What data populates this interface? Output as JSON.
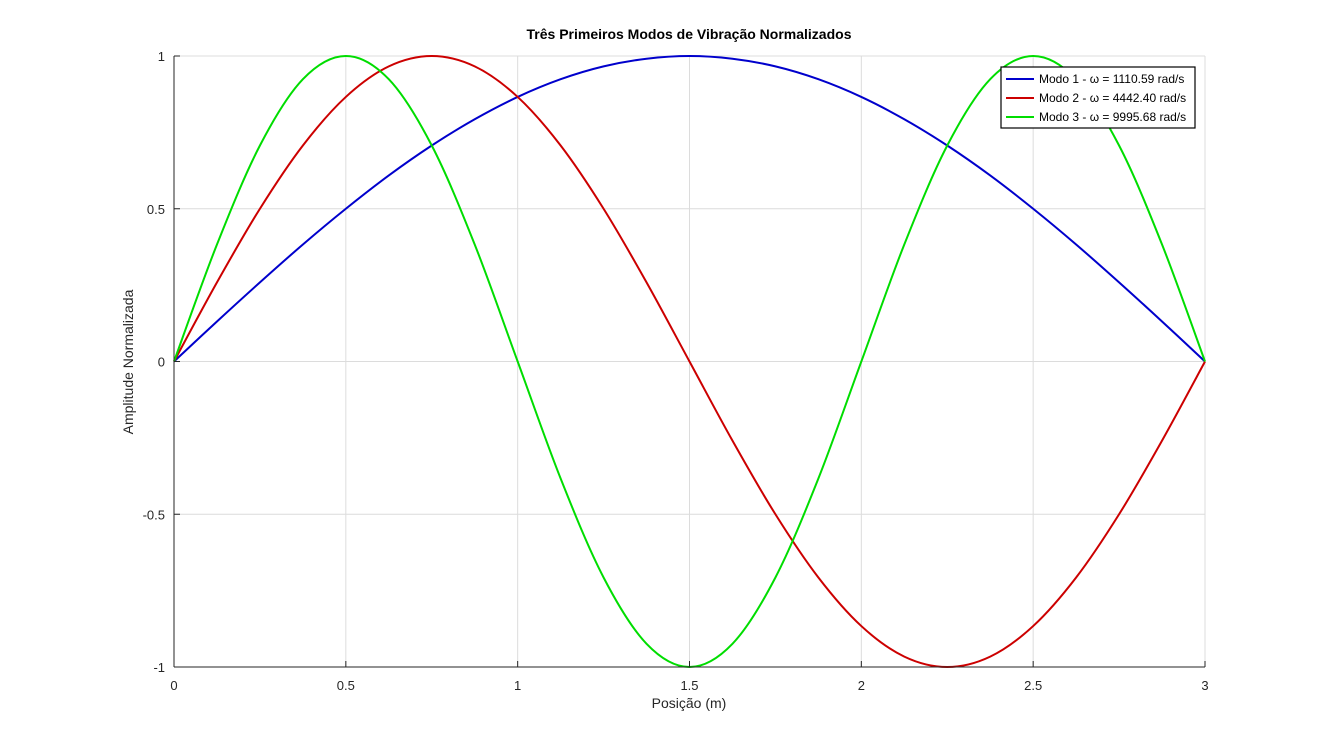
{
  "chart_data": {
    "type": "line",
    "title": "Três Primeiros Modos de Vibração Normalizados",
    "xlabel": "Posição (m)",
    "ylabel": "Amplitude Normalizada",
    "xlim": [
      0,
      3
    ],
    "ylim": [
      -1,
      1
    ],
    "xticks": [
      "0",
      "0.5",
      "1",
      "1.5",
      "2",
      "2.5",
      "3"
    ],
    "yticks": [
      "-1",
      "-0.5",
      "0",
      "0.5",
      "1"
    ],
    "grid": true,
    "legend_position": "top-right",
    "series": [
      {
        "name": "Modo 1 - ω = 1110.59 rad/s",
        "color": "#0000cc",
        "x": [
          0,
          0.125,
          0.25,
          0.375,
          0.5,
          0.625,
          0.75,
          0.875,
          1,
          1.125,
          1.25,
          1.375,
          1.5,
          1.625,
          1.75,
          1.875,
          2,
          2.125,
          2.25,
          2.375,
          2.5,
          2.625,
          2.75,
          2.875,
          3
        ],
        "y": [
          0,
          0.131,
          0.259,
          0.383,
          0.5,
          0.609,
          0.707,
          0.793,
          0.866,
          0.924,
          0.966,
          0.991,
          1,
          0.991,
          0.966,
          0.924,
          0.866,
          0.793,
          0.707,
          0.609,
          0.5,
          0.383,
          0.259,
          0.131,
          0
        ]
      },
      {
        "name": "Modo 2 - ω = 4442.40 rad/s",
        "color": "#cc0000",
        "x": [
          0,
          0.125,
          0.25,
          0.375,
          0.5,
          0.625,
          0.75,
          0.875,
          1,
          1.125,
          1.25,
          1.375,
          1.5,
          1.625,
          1.75,
          1.875,
          2,
          2.125,
          2.25,
          2.375,
          2.5,
          2.625,
          2.75,
          2.875,
          3
        ],
        "y": [
          0,
          0.259,
          0.5,
          0.707,
          0.866,
          0.966,
          1,
          0.966,
          0.866,
          0.707,
          0.5,
          0.259,
          0,
          -0.259,
          -0.5,
          -0.707,
          -0.866,
          -0.966,
          -1,
          -0.966,
          -0.866,
          -0.707,
          -0.5,
          -0.259,
          0
        ]
      },
      {
        "name": "Modo 3 - ω = 9995.68 rad/s",
        "color": "#00dd00",
        "x": [
          0,
          0.125,
          0.25,
          0.375,
          0.5,
          0.625,
          0.75,
          0.875,
          1,
          1.125,
          1.25,
          1.375,
          1.5,
          1.625,
          1.75,
          1.875,
          2,
          2.125,
          2.25,
          2.375,
          2.5,
          2.625,
          2.75,
          2.875,
          3
        ],
        "y": [
          0,
          0.383,
          0.707,
          0.924,
          1,
          0.924,
          0.707,
          0.383,
          0,
          -0.383,
          -0.707,
          -0.924,
          -1,
          -0.924,
          -0.707,
          -0.383,
          0,
          0.383,
          0.707,
          0.924,
          1,
          0.924,
          0.707,
          0.383,
          0
        ]
      }
    ]
  }
}
